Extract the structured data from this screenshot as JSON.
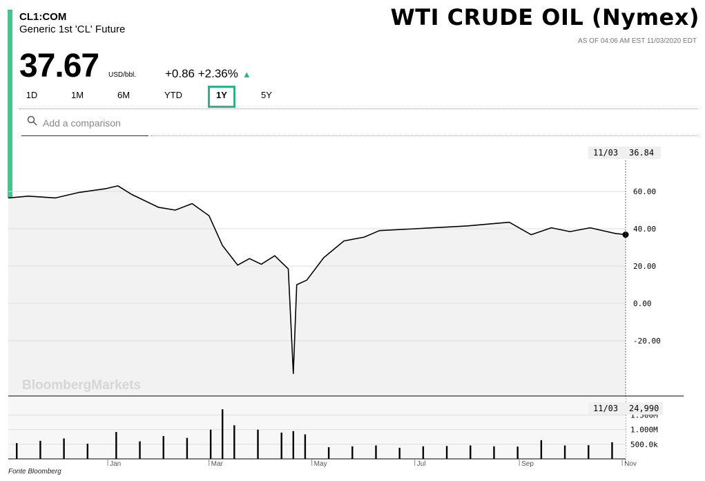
{
  "header": {
    "ticker": "CL1:COM",
    "description": "Generic 1st 'CL' Future",
    "headline": "WTI CRUDE OIL (Nymex)",
    "as_of": "AS OF 04:06 AM EST 11/03/2020 EDT",
    "price": "37.67",
    "unit": "USD/bbl.",
    "change": "+0.86  +2.36%",
    "change_icon": "up-triangle-icon"
  },
  "ranges": [
    "1D",
    "1M",
    "6M",
    "YTD",
    "1Y",
    "5Y"
  ],
  "active_range": "1Y",
  "search": {
    "placeholder": "Add a comparison",
    "icon": "search-icon"
  },
  "watermark": "BloombergMarkets",
  "source": "Fonte Bloomberg",
  "colors": {
    "accent": "#3ec88f",
    "active_border": "#2bb38a",
    "area_fill": "#f2f2f2",
    "line": "#000000"
  },
  "chart_data": [
    {
      "type": "area",
      "ylim": [
        -40,
        75
      ],
      "yticks": [
        "60.00",
        "40.00",
        "20.00",
        "0.00",
        "-20.00"
      ],
      "ytick_values": [
        60,
        40,
        20,
        0,
        -20
      ],
      "xlim": [
        "2019-11-03",
        "2020-11-03"
      ],
      "xticks": [
        {
          "label": "Jan",
          "date": "2020-01-01"
        },
        {
          "label": "Mar",
          "date": "2020-03-01"
        },
        {
          "label": "May",
          "date": "2020-05-01"
        },
        {
          "label": "Jul",
          "date": "2020-07-01"
        },
        {
          "label": "Sep",
          "date": "2020-09-01"
        },
        {
          "label": "Nov",
          "date": "2020-11-01"
        }
      ],
      "crosshair": {
        "date_label": "11/03",
        "value_label": "36.84"
      },
      "series": [
        {
          "points": [
            [
              "2019-11-03",
              56.5
            ],
            [
              "2019-11-15",
              57.5
            ],
            [
              "2019-12-01",
              56.5
            ],
            [
              "2019-12-15",
              59.5
            ],
            [
              "2019-12-31",
              61.5
            ],
            [
              "2020-01-07",
              63.0
            ],
            [
              "2020-01-15",
              58.5
            ],
            [
              "2020-01-31",
              51.5
            ],
            [
              "2020-02-10",
              50.0
            ],
            [
              "2020-02-20",
              53.5
            ],
            [
              "2020-03-01",
              47.0
            ],
            [
              "2020-03-09",
              31.0
            ],
            [
              "2020-03-18",
              20.5
            ],
            [
              "2020-03-25",
              24.0
            ],
            [
              "2020-04-01",
              21.0
            ],
            [
              "2020-04-09",
              25.5
            ],
            [
              "2020-04-17",
              18.5
            ],
            [
              "2020-04-20",
              -37.6
            ],
            [
              "2020-04-22",
              10.0
            ],
            [
              "2020-04-28",
              12.5
            ],
            [
              "2020-05-08",
              24.5
            ],
            [
              "2020-05-20",
              33.5
            ],
            [
              "2020-06-01",
              35.5
            ],
            [
              "2020-06-10",
              39.0
            ],
            [
              "2020-07-01",
              40.0
            ],
            [
              "2020-08-01",
              41.5
            ],
            [
              "2020-08-26",
              43.5
            ],
            [
              "2020-09-08",
              36.8
            ],
            [
              "2020-09-20",
              40.5
            ],
            [
              "2020-10-01",
              38.5
            ],
            [
              "2020-10-13",
              40.5
            ],
            [
              "2020-10-28",
              37.5
            ],
            [
              "2020-11-03",
              36.84
            ]
          ]
        }
      ]
    },
    {
      "type": "bar",
      "yticks": [
        "1.500M",
        "1.000M",
        "500.0k"
      ],
      "ytick_values": [
        1500000,
        1000000,
        500000
      ],
      "ylim": [
        0,
        1680000
      ],
      "crosshair": {
        "date_label": "11/03",
        "value_label": "24,990"
      },
      "series": [
        {
          "name": "volume",
          "points": [
            [
              "2019-11-08",
              540000
            ],
            [
              "2019-11-22",
              620000
            ],
            [
              "2019-12-06",
              700000
            ],
            [
              "2019-12-20",
              520000
            ],
            [
              "2020-01-06",
              920000
            ],
            [
              "2020-01-20",
              600000
            ],
            [
              "2020-02-03",
              780000
            ],
            [
              "2020-02-17",
              720000
            ],
            [
              "2020-03-02",
              1000000
            ],
            [
              "2020-03-09",
              1700000
            ],
            [
              "2020-03-16",
              1150000
            ],
            [
              "2020-03-30",
              1000000
            ],
            [
              "2020-04-13",
              900000
            ],
            [
              "2020-04-20",
              950000
            ],
            [
              "2020-04-27",
              840000
            ],
            [
              "2020-05-11",
              400000
            ],
            [
              "2020-05-25",
              430000
            ],
            [
              "2020-06-08",
              460000
            ],
            [
              "2020-06-22",
              380000
            ],
            [
              "2020-07-06",
              430000
            ],
            [
              "2020-07-20",
              440000
            ],
            [
              "2020-08-03",
              460000
            ],
            [
              "2020-08-17",
              430000
            ],
            [
              "2020-08-31",
              420000
            ],
            [
              "2020-09-14",
              640000
            ],
            [
              "2020-09-28",
              460000
            ],
            [
              "2020-10-12",
              470000
            ],
            [
              "2020-10-26",
              570000
            ]
          ]
        }
      ]
    }
  ]
}
